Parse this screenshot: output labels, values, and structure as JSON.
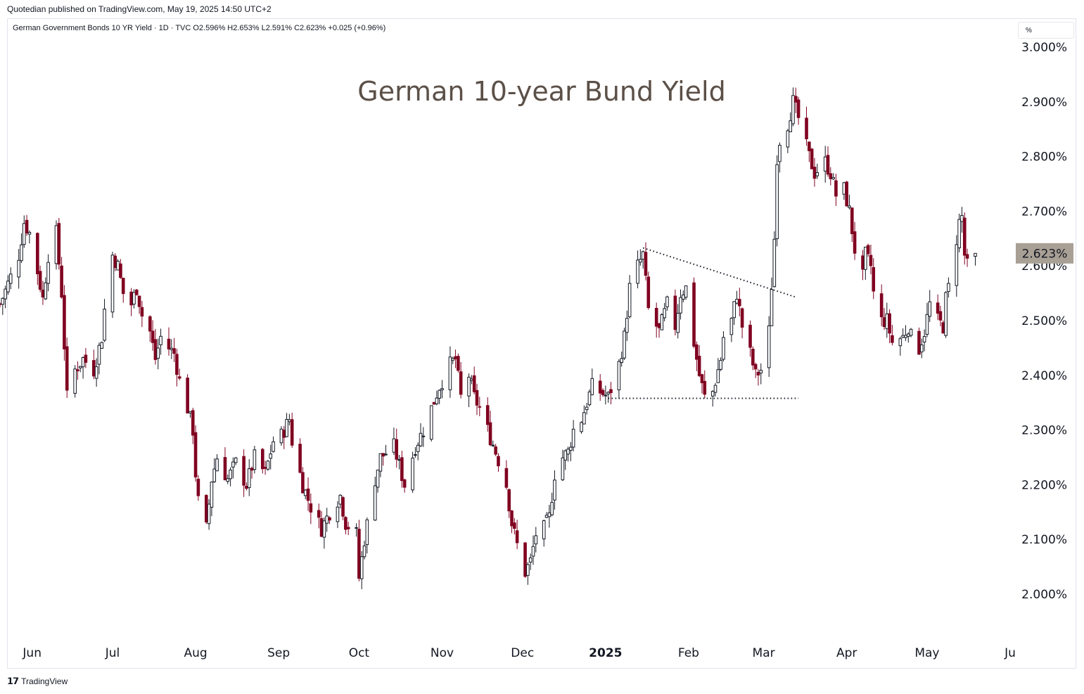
{
  "publisher": "Quotedian published on TradingView.com, May 19, 2025 14:50 UTC+2",
  "symbol_line": "German Government Bonds 10 YR Yield · 1D · TVC   O2.596%  H2.653%  L2.591%  C2.623%  +0.025 (+0.96%)",
  "unit_label": "%",
  "footer": {
    "logo_icon": "tradingview-logo-icon",
    "brand": "TradingView"
  },
  "colors": {
    "up": "#131722",
    "down": "#800020",
    "last_price_bg": "#a89f95",
    "title": "#5b5048"
  },
  "chart_data": {
    "type": "candlestick",
    "title": "German 10-year Bund Yield",
    "last_price_label": "2.623%",
    "last_price": 2.623,
    "y_ticks": [
      {
        "value": 3.0,
        "label": "3.000%"
      },
      {
        "value": 2.9,
        "label": "2.900%"
      },
      {
        "value": 2.8,
        "label": "2.800%"
      },
      {
        "value": 2.7,
        "label": "2.700%"
      },
      {
        "value": 2.6,
        "label": "2.600%"
      },
      {
        "value": 2.5,
        "label": "2.500%"
      },
      {
        "value": 2.4,
        "label": "2.400%"
      },
      {
        "value": 2.3,
        "label": "2.300%"
      },
      {
        "value": 2.2,
        "label": "2.200%"
      },
      {
        "value": 2.1,
        "label": "2.100%"
      },
      {
        "value": 2.0,
        "label": "2.000%"
      }
    ],
    "x_ticks": [
      {
        "date": "2024-06-01",
        "label": "Jun",
        "bold": false
      },
      {
        "date": "2024-07-01",
        "label": "Jul",
        "bold": false
      },
      {
        "date": "2024-08-01",
        "label": "Aug",
        "bold": false
      },
      {
        "date": "2024-09-01",
        "label": "Sep",
        "bold": false
      },
      {
        "date": "2024-10-01",
        "label": "Oct",
        "bold": false
      },
      {
        "date": "2024-11-01",
        "label": "Nov",
        "bold": false
      },
      {
        "date": "2024-12-01",
        "label": "Dec",
        "bold": false
      },
      {
        "date": "2025-01-01",
        "label": "2025",
        "bold": true
      },
      {
        "date": "2025-02-01",
        "label": "Feb",
        "bold": false
      },
      {
        "date": "2025-03-01",
        "label": "Mar",
        "bold": false
      },
      {
        "date": "2025-04-01",
        "label": "Apr",
        "bold": false
      },
      {
        "date": "2025-05-01",
        "label": "May",
        "bold": false
      },
      {
        "date": "2025-06-01",
        "label": "Ju",
        "bold": false
      }
    ],
    "x_start": "2024-05-20",
    "x_end": "2025-06-01",
    "trendlines": [
      {
        "name": "descending-resistance",
        "points": [
          [
            "2025-01-15",
            2.633
          ],
          [
            "2025-03-13",
            2.543
          ]
        ]
      },
      {
        "name": "horizontal-support",
        "points": [
          [
            "2025-01-02",
            2.358
          ],
          [
            "2025-03-14",
            2.358
          ]
        ]
      }
    ],
    "waypoints": [
      [
        "2024-05-20",
        2.53
      ],
      [
        "2024-05-24",
        2.58
      ],
      [
        "2024-05-27",
        2.62
      ],
      [
        "2024-05-29",
        2.68
      ],
      [
        "2024-05-31",
        2.66
      ],
      [
        "2024-06-03",
        2.59
      ],
      [
        "2024-06-05",
        2.54
      ],
      [
        "2024-06-07",
        2.62
      ],
      [
        "2024-06-10",
        2.66
      ],
      [
        "2024-06-12",
        2.55
      ],
      [
        "2024-06-14",
        2.36
      ],
      [
        "2024-06-17",
        2.41
      ],
      [
        "2024-06-20",
        2.43
      ],
      [
        "2024-06-24",
        2.41
      ],
      [
        "2024-06-27",
        2.47
      ],
      [
        "2024-06-28",
        2.52
      ],
      [
        "2024-07-01",
        2.62
      ],
      [
        "2024-07-03",
        2.6
      ],
      [
        "2024-07-05",
        2.55
      ],
      [
        "2024-07-08",
        2.53
      ],
      [
        "2024-07-10",
        2.56
      ],
      [
        "2024-07-12",
        2.51
      ],
      [
        "2024-07-15",
        2.48
      ],
      [
        "2024-07-17",
        2.43
      ],
      [
        "2024-07-19",
        2.47
      ],
      [
        "2024-07-22",
        2.45
      ],
      [
        "2024-07-24",
        2.44
      ],
      [
        "2024-07-26",
        2.39
      ],
      [
        "2024-07-29",
        2.34
      ],
      [
        "2024-07-31",
        2.3
      ],
      [
        "2024-08-01",
        2.22
      ],
      [
        "2024-08-02",
        2.17
      ],
      [
        "2024-08-05",
        2.12
      ],
      [
        "2024-08-07",
        2.21
      ],
      [
        "2024-08-09",
        2.25
      ],
      [
        "2024-08-13",
        2.21
      ],
      [
        "2024-08-16",
        2.24
      ],
      [
        "2024-08-20",
        2.2
      ],
      [
        "2024-08-23",
        2.25
      ],
      [
        "2024-08-27",
        2.22
      ],
      [
        "2024-08-30",
        2.28
      ],
      [
        "2024-09-02",
        2.29
      ],
      [
        "2024-09-05",
        2.32
      ],
      [
        "2024-09-06",
        2.28
      ],
      [
        "2024-09-10",
        2.2
      ],
      [
        "2024-09-13",
        2.16
      ],
      [
        "2024-09-17",
        2.12
      ],
      [
        "2024-09-20",
        2.15
      ],
      [
        "2024-09-24",
        2.18
      ],
      [
        "2024-09-26",
        2.13
      ],
      [
        "2024-09-30",
        2.11
      ],
      [
        "2024-10-01",
        2.03
      ],
      [
        "2024-10-03",
        2.1
      ],
      [
        "2024-10-07",
        2.21
      ],
      [
        "2024-10-09",
        2.25
      ],
      [
        "2024-10-14",
        2.27
      ],
      [
        "2024-10-18",
        2.2
      ],
      [
        "2024-10-22",
        2.27
      ],
      [
        "2024-10-25",
        2.3
      ],
      [
        "2024-10-28",
        2.34
      ],
      [
        "2024-10-31",
        2.38
      ],
      [
        "2024-11-04",
        2.42
      ],
      [
        "2024-11-06",
        2.43
      ],
      [
        "2024-11-08",
        2.36
      ],
      [
        "2024-11-11",
        2.4
      ],
      [
        "2024-11-13",
        2.36
      ],
      [
        "2024-11-15",
        2.34
      ],
      [
        "2024-11-18",
        2.3
      ],
      [
        "2024-11-21",
        2.26
      ],
      [
        "2024-11-25",
        2.2
      ],
      [
        "2024-11-27",
        2.13
      ],
      [
        "2024-11-29",
        2.09
      ],
      [
        "2024-12-02",
        2.04
      ],
      [
        "2024-12-04",
        2.06
      ],
      [
        "2024-12-06",
        2.11
      ],
      [
        "2024-12-09",
        2.12
      ],
      [
        "2024-12-11",
        2.14
      ],
      [
        "2024-12-13",
        2.22
      ],
      [
        "2024-12-16",
        2.25
      ],
      [
        "2024-12-18",
        2.26
      ],
      [
        "2024-12-20",
        2.3
      ],
      [
        "2024-12-23",
        2.32
      ],
      [
        "2024-12-27",
        2.38
      ],
      [
        "2024-12-30",
        2.37
      ],
      [
        "2025-01-02",
        2.36
      ],
      [
        "2025-01-06",
        2.42
      ],
      [
        "2025-01-08",
        2.47
      ],
      [
        "2025-01-10",
        2.56
      ],
      [
        "2025-01-13",
        2.6
      ],
      [
        "2025-01-15",
        2.62
      ],
      [
        "2025-01-17",
        2.52
      ],
      [
        "2025-01-21",
        2.48
      ],
      [
        "2025-01-24",
        2.53
      ],
      [
        "2025-01-27",
        2.49
      ],
      [
        "2025-01-29",
        2.55
      ],
      [
        "2025-01-31",
        2.56
      ],
      [
        "2025-02-03",
        2.46
      ],
      [
        "2025-02-05",
        2.4
      ],
      [
        "2025-02-07",
        2.36
      ],
      [
        "2025-02-10",
        2.37
      ],
      [
        "2025-02-13",
        2.43
      ],
      [
        "2025-02-14",
        2.47
      ],
      [
        "2025-02-17",
        2.5
      ],
      [
        "2025-02-19",
        2.55
      ],
      [
        "2025-02-21",
        2.49
      ],
      [
        "2025-02-24",
        2.44
      ],
      [
        "2025-02-26",
        2.4
      ],
      [
        "2025-02-28",
        2.41
      ],
      [
        "2025-03-03",
        2.48
      ],
      [
        "2025-03-05",
        2.65
      ],
      [
        "2025-03-06",
        2.8
      ],
      [
        "2025-03-07",
        2.83
      ],
      [
        "2025-03-10",
        2.86
      ],
      [
        "2025-03-12",
        2.9
      ],
      [
        "2025-03-14",
        2.87
      ],
      [
        "2025-03-18",
        2.8
      ],
      [
        "2025-03-20",
        2.77
      ],
      [
        "2025-03-24",
        2.79
      ],
      [
        "2025-03-26",
        2.77
      ],
      [
        "2025-03-28",
        2.73
      ],
      [
        "2025-03-31",
        2.74
      ],
      [
        "2025-04-02",
        2.7
      ],
      [
        "2025-04-04",
        2.63
      ],
      [
        "2025-04-07",
        2.58
      ],
      [
        "2025-04-08",
        2.62
      ],
      [
        "2025-04-10",
        2.6
      ],
      [
        "2025-04-11",
        2.55
      ],
      [
        "2025-04-14",
        2.5
      ],
      [
        "2025-04-16",
        2.5
      ],
      [
        "2025-04-18",
        2.46
      ],
      [
        "2025-04-22",
        2.47
      ],
      [
        "2025-04-24",
        2.49
      ],
      [
        "2025-04-25",
        2.47
      ],
      [
        "2025-04-28",
        2.45
      ],
      [
        "2025-04-30",
        2.48
      ],
      [
        "2025-05-02",
        2.53
      ],
      [
        "2025-05-05",
        2.5
      ],
      [
        "2025-05-07",
        2.49
      ],
      [
        "2025-05-08",
        2.54
      ],
      [
        "2025-05-09",
        2.56
      ],
      [
        "2025-05-12",
        2.65
      ],
      [
        "2025-05-13",
        2.68
      ],
      [
        "2025-05-14",
        2.69
      ],
      [
        "2025-05-15",
        2.62
      ],
      [
        "2025-05-16",
        2.6
      ],
      [
        "2025-05-19",
        2.623
      ]
    ]
  }
}
